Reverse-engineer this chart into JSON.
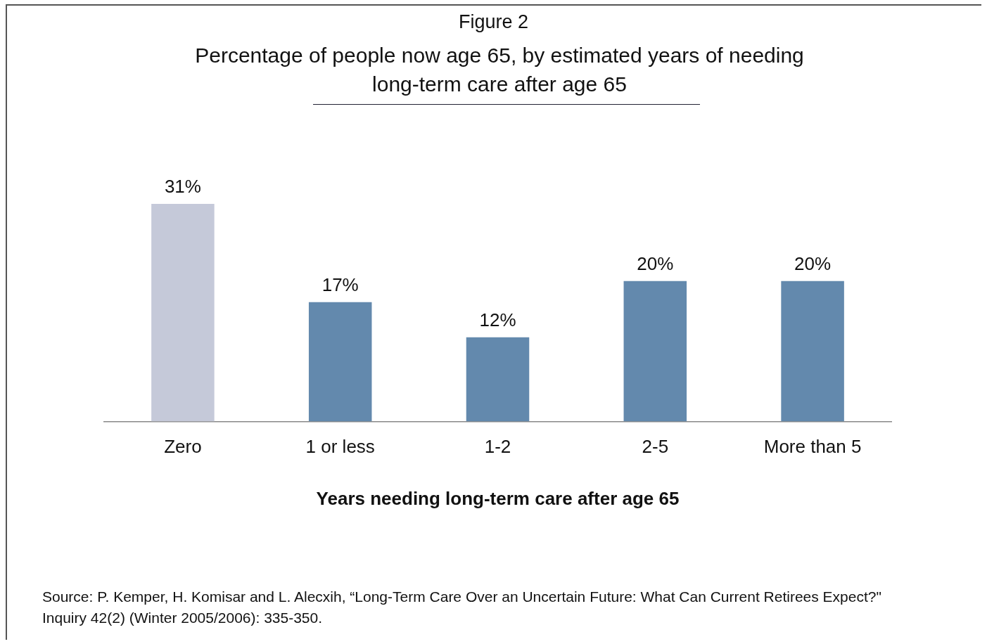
{
  "chart_data": {
    "type": "bar",
    "title": "Figure 2",
    "subtitle": "Percentage of people now age 65, by estimated years of needing long-term care after age 65",
    "xlabel": "Years needing long-term care after age 65",
    "categories": [
      "Zero",
      "1 or less",
      "1-2",
      "2-5",
      "More than 5"
    ],
    "values": [
      31,
      17,
      12,
      20,
      20
    ],
    "colors": [
      "#c5c9d9",
      "#6389ad",
      "#6389ad",
      "#6389ad",
      "#6389ad"
    ],
    "value_labels": [
      "31%",
      "17%",
      "12%",
      "20%",
      "20%"
    ],
    "grid": false,
    "legend": false,
    "annotations": [
      "Source: P. Kemper, H. Komisar and L. Alecxih, “Long-Term Care Over an Uncertain Future: What Can Current Retirees Expect?\" Inquiry 42(2) (Winter 2005/2006): 335-350."
    ]
  }
}
